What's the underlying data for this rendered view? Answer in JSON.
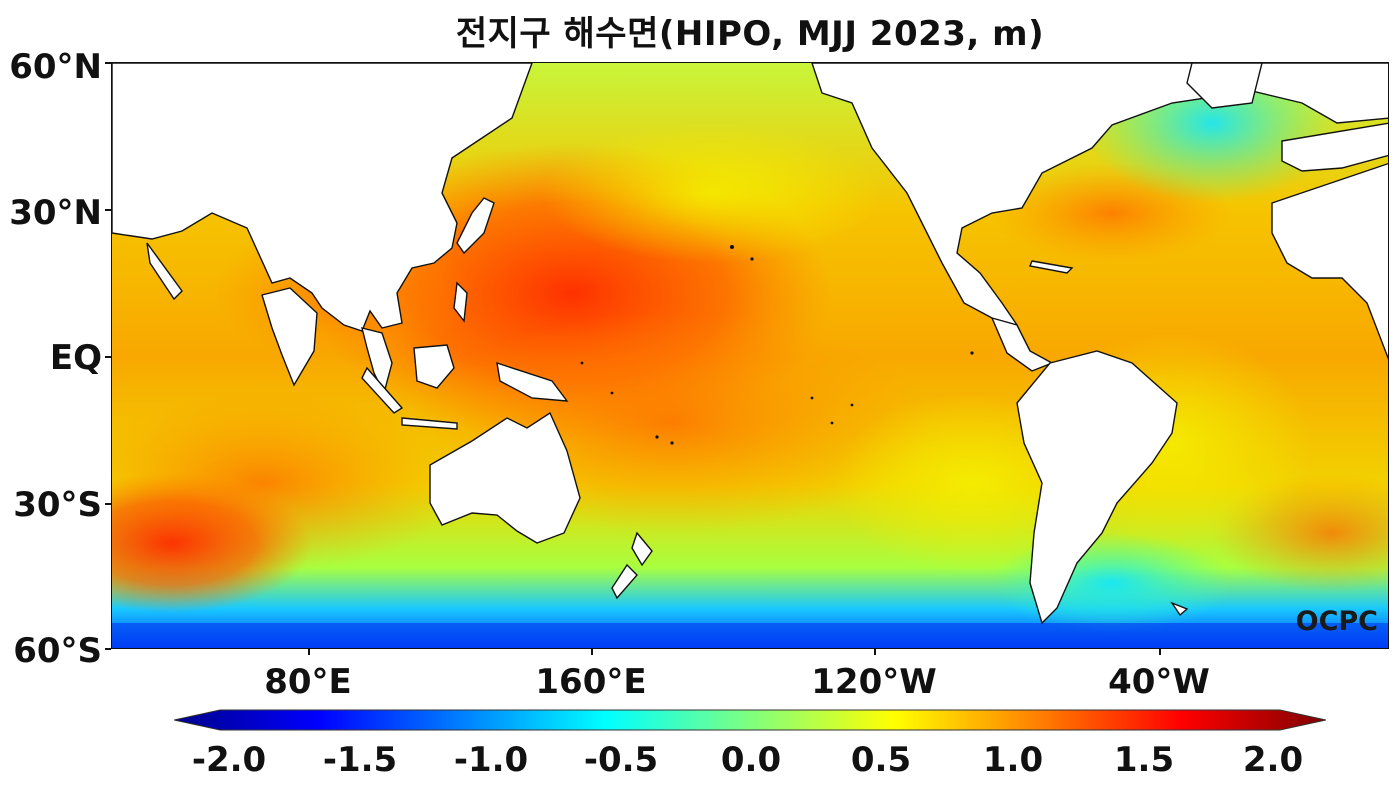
{
  "title": "전지구 해수면(HIPO, MJJ 2023, m)",
  "watermark": "OCPC",
  "lat_labels": [
    "60°N",
    "30°N",
    "EQ",
    "30°S",
    "60°S"
  ],
  "lon_labels": [
    "80°E",
    "160°E",
    "120°W",
    "40°W"
  ],
  "colorbar": {
    "ticks": [
      "-2.0",
      "-1.5",
      "-1.0",
      "-0.5",
      "0.0",
      "0.5",
      "1.0",
      "1.5",
      "2.0"
    ],
    "colors": [
      "#00008b",
      "#0000ff",
      "#0080ff",
      "#00ffff",
      "#7fff7f",
      "#ffff00",
      "#ff8000",
      "#ff0000",
      "#7f0000"
    ]
  }
}
